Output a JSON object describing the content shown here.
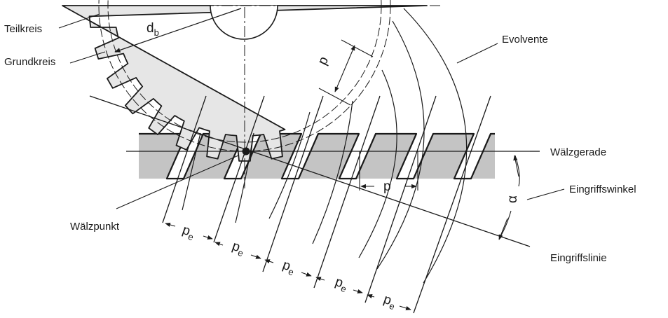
{
  "diagram": {
    "labels": {
      "teilkreis": "Teilkreis",
      "grundkreis": "Grundkreis",
      "evolvente": "Evolvente",
      "waelzgerade": "Wälzgerade",
      "eingriffswinkel": "Eingriffswinkel",
      "waelzpunkt": "Wälzpunkt",
      "eingriffslinie": "Eingriffslinie"
    },
    "symbols": {
      "base_diameter": "d",
      "base_diameter_sub": "b",
      "pitch_on_circle": "p",
      "pitch_on_rack": "p",
      "pressure_angle": "α",
      "base_pitch": "p",
      "base_pitch_sub": "e",
      "base_pitch_count": 5
    },
    "colors": {
      "gear_fill": "#e6e6e6",
      "rack_fill": "#c4c4c4",
      "line": "#1a1a1a"
    }
  }
}
